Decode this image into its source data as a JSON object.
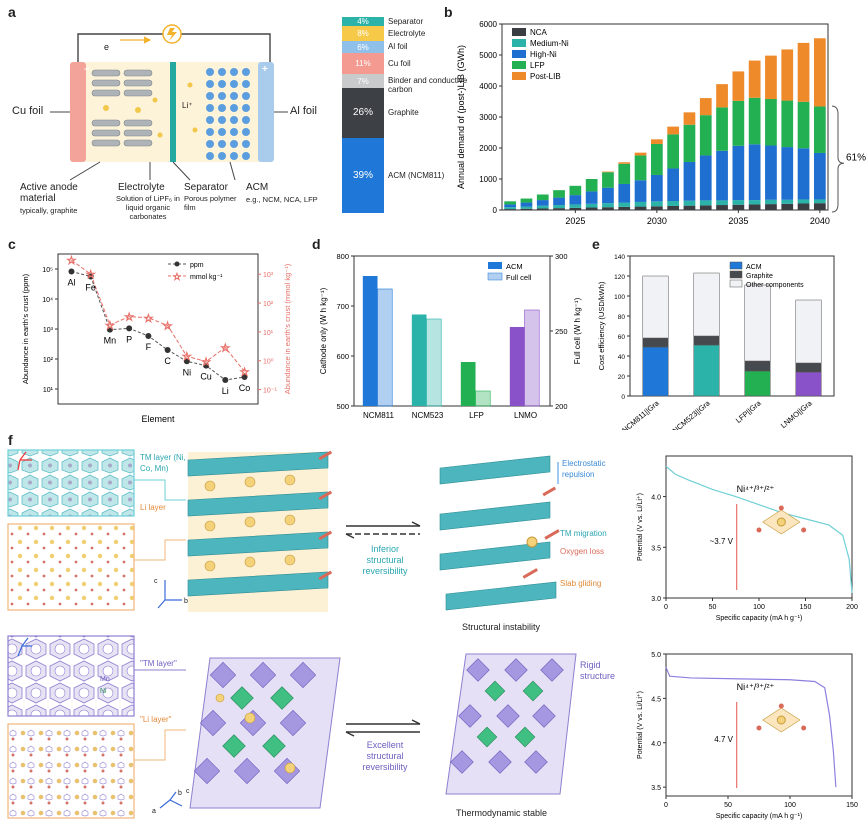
{
  "panels": {
    "a": "a",
    "b": "b",
    "c": "c",
    "d": "d",
    "e": "e",
    "f": "f"
  },
  "panel_a": {
    "cu_foil": "Cu foil",
    "al_foil": "Al foil",
    "electron": "e",
    "li_ion": "Li⁺",
    "minus": "−",
    "plus": "+",
    "anode_title": "Active anode material",
    "anode_sub": "typically, graphite",
    "electrolyte_title": "Electrolyte",
    "electrolyte_sub": "Solution of LiPF₆ in liquid organic carbonates",
    "separator_title": "Separator",
    "separator_sub": "Porous polymer film",
    "acm_title": "ACM",
    "acm_sub": "e.g., NCM, NCA, LFP",
    "colors": {
      "cu": "#f4a39a",
      "al": "#a9cbec",
      "anode": "#aeb3b8",
      "cathode": "#5b9ee0",
      "sep": "#23a9a0"
    }
  },
  "stack": {
    "segments": [
      {
        "label": "Separator",
        "value": "4%",
        "color": "#2bb3aa",
        "pct": 4
      },
      {
        "label": "Electrolyte",
        "value": "8%",
        "color": "#f7c948",
        "pct": 8
      },
      {
        "label": "Al foil",
        "value": "6%",
        "color": "#8fc0ea",
        "pct": 6
      },
      {
        "label": "Cu foil",
        "value": "11%",
        "color": "#f49a91",
        "pct": 11
      },
      {
        "label": "Binder and conductive carbon",
        "value": "7%",
        "color": "#c8cacc",
        "pct": 7
      },
      {
        "label": "Graphite",
        "value": "26%",
        "color": "#3d4044",
        "pct": 26
      },
      {
        "label": "ACM (NCM811)",
        "value": "39%",
        "color": "#1f78d8",
        "pct": 39
      }
    ]
  },
  "chart_data": [
    {
      "panel": "b",
      "type": "bar",
      "ylabel": "Annual demand of (post-)LIB (GWh)",
      "ylim": [
        0,
        6000
      ],
      "yticks": [
        "0",
        "1000",
        "2000",
        "3000",
        "4000",
        "5000",
        "6000"
      ],
      "xticks": [
        "2025",
        "2030",
        "2035",
        "2040"
      ],
      "x": [
        2021,
        2022,
        2023,
        2024,
        2025,
        2026,
        2027,
        2028,
        2029,
        2030,
        2031,
        2032,
        2033,
        2034,
        2035,
        2036,
        2037,
        2038,
        2039,
        2040
      ],
      "series": [
        {
          "name": "NCA",
          "color": "#3a3d42",
          "values": [
            30,
            40,
            50,
            60,
            70,
            80,
            90,
            100,
            110,
            120,
            130,
            140,
            150,
            160,
            170,
            180,
            190,
            200,
            210,
            220
          ]
        },
        {
          "name": "Medium-Ni",
          "color": "#2bb3aa",
          "values": [
            60,
            70,
            90,
            100,
            110,
            120,
            130,
            140,
            150,
            160,
            160,
            160,
            160,
            150,
            150,
            140,
            140,
            130,
            130,
            120
          ]
        },
        {
          "name": "High-Ni",
          "color": "#1f6fd0",
          "values": [
            90,
            130,
            180,
            240,
            300,
            400,
            500,
            600,
            700,
            850,
            1050,
            1250,
            1450,
            1600,
            1750,
            1800,
            1750,
            1700,
            1650,
            1500
          ]
        },
        {
          "name": "LFP",
          "color": "#23b052",
          "values": [
            100,
            130,
            180,
            240,
            300,
            400,
            500,
            650,
            800,
            1000,
            1100,
            1200,
            1300,
            1400,
            1450,
            1500,
            1500,
            1500,
            1500,
            1500
          ]
        },
        {
          "name": "Post-LIB",
          "color": "#ee8a2a",
          "values": [
            0,
            0,
            0,
            0,
            0,
            0,
            20,
            50,
            90,
            150,
            250,
            400,
            550,
            750,
            950,
            1200,
            1400,
            1650,
            1900,
            2200
          ]
        }
      ],
      "annotation": "61%"
    },
    {
      "panel": "c",
      "type": "scatter",
      "xlabel": "Element",
      "ylabel": "Abundance in earth's crust (ppm)",
      "y2label": "Abundance in earth's crust (mmol kg⁻¹)",
      "categories": [
        "Al",
        "Fe",
        "Mn",
        "P",
        "F",
        "C",
        "Ni",
        "Cu",
        "Li",
        "Co"
      ],
      "yticks": [
        "10¹",
        "10²",
        "10³",
        "10⁴",
        "10⁵"
      ],
      "y2ticks": [
        "10⁻¹",
        "10⁰",
        "10¹",
        "10²",
        "10³"
      ],
      "series": [
        {
          "name": "ppm",
          "color": "#333333",
          "values": [
            82300,
            56300,
            950,
            1050,
            585,
            200,
            84,
            60,
            20,
            25
          ]
        },
        {
          "name": "mmol kg⁻¹",
          "color": "#e8716a",
          "values": [
            3050,
            1010,
            17.3,
            33.9,
            30.8,
            16.7,
            1.43,
            0.94,
            2.88,
            0.42
          ]
        }
      ]
    },
    {
      "panel": "d",
      "type": "bar",
      "ylabel": "Cathode only (W h kg⁻¹)",
      "y2label": "Full cell (W h kg⁻¹)",
      "ylim": [
        500,
        800
      ],
      "y2lim": [
        200,
        300
      ],
      "yticks": [
        "500",
        "600",
        "700",
        "800"
      ],
      "y2ticks": [
        "200",
        "250",
        "300"
      ],
      "categories": [
        "NCM811",
        "NCM523",
        "LFP",
        "LNMO"
      ],
      "colors": [
        "#1f78d8",
        "#2bb3aa",
        "#23b052",
        "#8a52c9"
      ],
      "series": [
        {
          "name": "ACM",
          "values": [
            760,
            683,
            588,
            658
          ]
        },
        {
          "name": "Full cell",
          "values": [
            278,
            258,
            210,
            264
          ]
        }
      ]
    },
    {
      "panel": "e",
      "type": "bar",
      "ylabel": "Cost efficiency (USD/kWh)",
      "ylim": [
        0,
        140
      ],
      "yticks": [
        "0",
        "20",
        "40",
        "60",
        "80",
        "100",
        "120",
        "140"
      ],
      "categories": [
        "NCM811||Gra",
        "NCM523||Gra",
        "LFP||Gra",
        "LNMO||Gra"
      ],
      "acm_colors": [
        "#1f78d8",
        "#2bb3aa",
        "#23b052",
        "#8a52c9"
      ],
      "series": [
        {
          "name": "ACM",
          "values": [
            49,
            51,
            25,
            24
          ]
        },
        {
          "name": "Graphite",
          "values": [
            9,
            9,
            10,
            9
          ]
        },
        {
          "name": "Other components",
          "values": [
            62,
            63,
            76,
            63
          ]
        }
      ]
    },
    {
      "panel": "f-top",
      "type": "line",
      "xlabel": "Specific capacity (mA h g⁻¹)",
      "ylabel": "Potential (V vs. Li/Li⁺)",
      "xlim": [
        0,
        200
      ],
      "ylim": [
        3.0,
        4.4
      ],
      "xticks": [
        "0",
        "50",
        "100",
        "150",
        "200"
      ],
      "yticks": [
        "3.0",
        "3.5",
        "4.0"
      ],
      "series": [
        {
          "name": "",
          "color": "#6fd0d6",
          "points": [
            [
              0,
              4.3
            ],
            [
              10,
              4.22
            ],
            [
              25,
              4.16
            ],
            [
              50,
              4.07
            ],
            [
              75,
              4.0
            ],
            [
              100,
              3.92
            ],
            [
              125,
              3.84
            ],
            [
              150,
              3.78
            ],
            [
              175,
              3.72
            ],
            [
              190,
              3.62
            ],
            [
              197,
              3.38
            ],
            [
              200,
              3.05
            ]
          ]
        }
      ],
      "label": "Ni⁴⁺/³⁺/²⁺",
      "voltage": "~3.7 V"
    },
    {
      "panel": "f-bottom",
      "type": "line",
      "xlabel": "Specific capacity (mA h g⁻¹)",
      "ylabel": "Potential (V vs. Li/Li⁺)",
      "xlim": [
        0,
        150
      ],
      "ylim": [
        3.4,
        5.0
      ],
      "xticks": [
        "0",
        "50",
        "100",
        "150"
      ],
      "yticks": [
        "3.5",
        "4.0",
        "4.5",
        "5.0"
      ],
      "series": [
        {
          "name": "",
          "color": "#8e7fe0",
          "points": [
            [
              0,
              4.85
            ],
            [
              3,
              4.75
            ],
            [
              20,
              4.73
            ],
            [
              60,
              4.72
            ],
            [
              100,
              4.71
            ],
            [
              120,
              4.69
            ],
            [
              128,
              4.62
            ],
            [
              132,
              4.3
            ],
            [
              135,
              3.9
            ],
            [
              137,
              3.5
            ]
          ]
        }
      ],
      "label": "Ni⁴⁺/³⁺/²⁺",
      "voltage": "4.7 V"
    }
  ],
  "panel_f": {
    "tm_layer": "TM layer (Ni, Co, Mn)",
    "li_layer": "Li layer",
    "tm_layer_q": "\"TM layer\"",
    "li_layer_q": "\"Li layer\"",
    "mn": "Mn",
    "ni": "Ni",
    "inferior": "Inferior structural reversibility",
    "excellent": "Excellent structural reversibility",
    "electrostatic": "Electrostatic repulsion",
    "tm_migration": "TM migration",
    "oxygen_loss": "Oxygen loss",
    "slab_gliding": "Slab gliding",
    "instability": "Structural instability",
    "rigid": "Rigid structure",
    "thermo": "Thermodynamic stable",
    "axis_a": "a",
    "axis_b": "b",
    "axis_c": "c"
  }
}
